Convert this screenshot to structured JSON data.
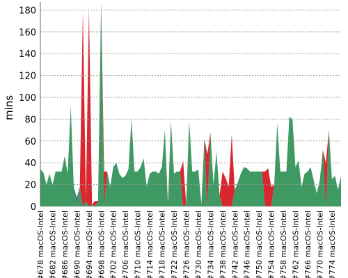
{
  "chart_data": {
    "type": "area",
    "stacked": true,
    "y_label": "mins",
    "categories": [
      "#678 macOS-Intel",
      null,
      null,
      null,
      "#682 macOS-Intel",
      null,
      null,
      null,
      "#686 macOS-Intel",
      null,
      null,
      null,
      "#690 macOS-Intel",
      null,
      null,
      null,
      "#694 macOS-Intel",
      null,
      null,
      null,
      "#698 macOS-Intel",
      null,
      null,
      null,
      "#702 macOS-Intel",
      null,
      null,
      null,
      "#706 macOS-Intel",
      null,
      null,
      null,
      "#710 macOS-Intel",
      null,
      null,
      null,
      "#714 macOS-Intel",
      null,
      null,
      null,
      "#718 macOS-Intel",
      null,
      null,
      null,
      "#722 macOS-Intel",
      null,
      null,
      null,
      "#726 macOS-Intel",
      null,
      null,
      null,
      "#730 macOS-Intel",
      null,
      null,
      null,
      "#734 macOS-Intel",
      null,
      null,
      null,
      "#738 macOS-Intel",
      null,
      null,
      null,
      "#742 macOS-Intel",
      null,
      null,
      null,
      "#746 macOS-Intel",
      null,
      null,
      null,
      "#750 macOS-Intel",
      null,
      null,
      null,
      "#754 macOS-Intel",
      null,
      null,
      null,
      "#758 macOS-Intel",
      null,
      null,
      null,
      "#762 macOS-Intel",
      null,
      null,
      null,
      "#766 macOS-Intel",
      null,
      null,
      null,
      "#770 macOS-Intel",
      null,
      null,
      null,
      "#774 macOS-Intel",
      null,
      null,
      null
    ],
    "series": [
      {
        "color": "#3e9a62",
        "values": [
          34,
          31,
          20,
          30,
          20,
          32,
          32,
          32,
          46,
          30,
          92,
          18,
          0,
          18,
          0,
          5,
          0,
          2,
          0,
          5,
          188,
          0,
          32,
          18,
          36,
          40,
          30,
          26,
          28,
          34,
          80,
          32,
          32,
          36,
          44,
          18,
          30,
          32,
          32,
          30,
          36,
          70,
          0,
          78,
          30,
          32,
          32,
          0,
          2,
          78,
          32,
          32,
          34,
          2,
          62,
          0,
          68,
          20,
          50,
          10,
          0,
          0,
          0,
          0,
          15,
          22,
          30,
          36,
          35,
          32,
          32,
          32,
          32,
          32,
          0,
          0,
          0,
          20,
          76,
          32,
          32,
          32,
          82,
          80,
          36,
          42,
          18,
          30,
          32,
          36,
          24,
          12,
          24,
          52,
          0,
          70,
          25,
          28,
          15,
          28
        ]
      },
      {
        "color": "#d9262f",
        "values": [
          0,
          0,
          0,
          0,
          0,
          0,
          0,
          0,
          0,
          0,
          0,
          0,
          0,
          0,
          180,
          0,
          182,
          0,
          5,
          0,
          0,
          32,
          0,
          0,
          0,
          0,
          0,
          0,
          0,
          0,
          0,
          0,
          0,
          0,
          0,
          0,
          0,
          0,
          0,
          0,
          0,
          0,
          3,
          0,
          0,
          0,
          0,
          42,
          0,
          0,
          0,
          0,
          0,
          0,
          0,
          48,
          0,
          0,
          0,
          0,
          32,
          26,
          18,
          66,
          0,
          0,
          0,
          0,
          0,
          0,
          0,
          0,
          0,
          0,
          32,
          35,
          18,
          0,
          0,
          0,
          0,
          0,
          0,
          0,
          0,
          0,
          0,
          0,
          0,
          0,
          0,
          0,
          0,
          0,
          40,
          0,
          0,
          0,
          0,
          0
        ]
      },
      {
        "color": "#5a6a78",
        "values": [
          0,
          0,
          0,
          0,
          0,
          0,
          0,
          0,
          0,
          0,
          0,
          0,
          8,
          0,
          0,
          0,
          0,
          0,
          0,
          0,
          0,
          0,
          0,
          0,
          0,
          0,
          0,
          0,
          0,
          0,
          0,
          0,
          0,
          0,
          0,
          0,
          0,
          0,
          0,
          0,
          0,
          0,
          0,
          0,
          0,
          0,
          0,
          0,
          0,
          0,
          0,
          0,
          0,
          0,
          0,
          0,
          0,
          0,
          0,
          0,
          0,
          0,
          0,
          0,
          0,
          0,
          0,
          0,
          0,
          0,
          0,
          0,
          0,
          0,
          0,
          0,
          0,
          0,
          0,
          0,
          0,
          0,
          0,
          0,
          0,
          0,
          0,
          0,
          0,
          0,
          0,
          0,
          0,
          0,
          0,
          0,
          0,
          0,
          0,
          0
        ]
      }
    ],
    "ylim": [
      0,
      186
    ],
    "yticks": [
      0,
      20,
      40,
      60,
      80,
      100,
      120,
      140,
      160,
      180
    ],
    "grid": true
  }
}
